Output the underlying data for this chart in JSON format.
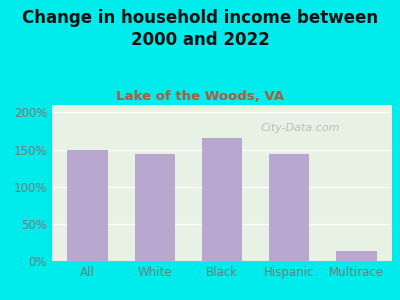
{
  "title": "Change in household income between\n2000 and 2022",
  "subtitle": "Lake of the Woods, VA",
  "categories": [
    "All",
    "White",
    "Black",
    "Hispanic",
    "Multirace"
  ],
  "values": [
    150,
    144,
    165,
    144,
    13
  ],
  "bar_color": "#b8a8d0",
  "title_fontsize": 12,
  "subtitle_fontsize": 9.5,
  "subtitle_color": "#b05a3a",
  "background_color": "#00ecec",
  "plot_bg_color": "#e8f2e4",
  "yticks": [
    0,
    50,
    100,
    150,
    200
  ],
  "ylim": [
    0,
    210
  ],
  "watermark": "City-Data.com",
  "tick_color": "#777777"
}
